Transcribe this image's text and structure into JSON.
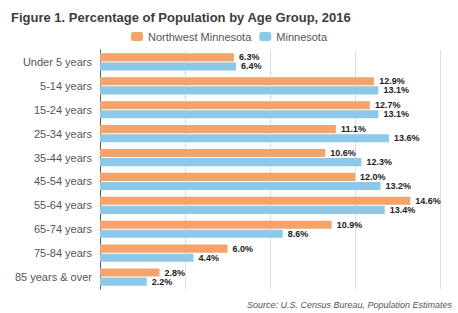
{
  "chart_data": {
    "type": "bar",
    "orientation": "horizontal",
    "title": "Figure 1. Percentage of Population by Age Group, 2016",
    "categories": [
      "Under 5 years",
      "5-14 years",
      "15-24 years",
      "25-34 years",
      "35-44 years",
      "45-54 years",
      "55-64 years",
      "65-74 years",
      "75-84 years",
      "85 years & over"
    ],
    "series": [
      {
        "name": "Northwest Minnesota",
        "color": "#F4A46A",
        "values": [
          6.3,
          12.9,
          12.7,
          11.1,
          10.6,
          12.0,
          14.6,
          10.9,
          6.0,
          2.8
        ],
        "value_labels": [
          "6.3%",
          "12.9%",
          "12.7%",
          "11.1%",
          "10.6%",
          "12.0%",
          "14.6%",
          "10.9%",
          "6.0%",
          "2.8%"
        ]
      },
      {
        "name": "Minnesota",
        "color": "#8DC8E8",
        "values": [
          6.4,
          13.1,
          13.1,
          13.6,
          12.3,
          13.2,
          13.4,
          8.6,
          4.4,
          2.2
        ],
        "value_labels": [
          "6.4%",
          "13.1%",
          "13.1%",
          "13.6%",
          "12.3%",
          "13.2%",
          "13.4%",
          "8.6%",
          "4.4%",
          "2.2%"
        ]
      }
    ],
    "xlim": [
      0,
      16
    ],
    "xticks": [
      0,
      4,
      8,
      12,
      16
    ],
    "grid": true,
    "tick_labels": "y",
    "data_labels": true,
    "legend": "top",
    "annotations": [
      "Source: U.S. Census Bureau, Population Estimates"
    ]
  }
}
